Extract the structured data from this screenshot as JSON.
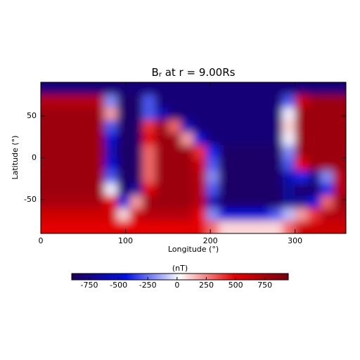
{
  "chart_data": {
    "type": "heatmap",
    "title": {
      "main": "B",
      "sub": "r",
      "rest": " at r = 9.00Rs"
    },
    "x_label": "Longitude (°)",
    "y_label": "Latitude (°)",
    "x": [
      7.5,
      22.5,
      37.5,
      52.5,
      67.5,
      82.5,
      97.5,
      112.5,
      127.5,
      142.5,
      157.5,
      172.5,
      187.5,
      202.5,
      217.5,
      232.5,
      247.5,
      262.5,
      277.5,
      292.5,
      307.5,
      322.5,
      337.5,
      352.5
    ],
    "y": [
      82.5,
      67.5,
      52.5,
      37.5,
      22.5,
      7.5,
      -7.5,
      -22.5,
      -37.5,
      -52.5,
      -67.5,
      -82.5
    ],
    "z": [
      [
        -800,
        -800,
        -800,
        -800,
        -800,
        -800,
        -800,
        -800,
        -800,
        -800,
        -800,
        -800,
        -800,
        -800,
        -800,
        -800,
        -800,
        -800,
        -800,
        -800,
        -800,
        -800,
        -800,
        -800
      ],
      [
        700,
        700,
        700,
        700,
        700,
        -200,
        -850,
        -850,
        -300,
        -800,
        -800,
        -800,
        -800,
        -800,
        -800,
        -800,
        -800,
        -800,
        -800,
        -300,
        600,
        800,
        800,
        800
      ],
      [
        800,
        800,
        800,
        800,
        800,
        200,
        -850,
        -850,
        -300,
        -600,
        -800,
        -800,
        -800,
        -800,
        -800,
        -800,
        -800,
        -800,
        -800,
        0,
        800,
        800,
        800,
        800
      ],
      [
        800,
        800,
        800,
        800,
        800,
        -300,
        -850,
        -850,
        400,
        800,
        300,
        -600,
        -800,
        -800,
        -800,
        -800,
        -800,
        -800,
        -800,
        100,
        800,
        800,
        800,
        800
      ],
      [
        800,
        800,
        800,
        800,
        800,
        -500,
        -850,
        -850,
        500,
        800,
        800,
        200,
        -500,
        -800,
        -800,
        -800,
        -800,
        -800,
        -800,
        0,
        800,
        800,
        800,
        800
      ],
      [
        800,
        800,
        800,
        800,
        800,
        -600,
        -850,
        -850,
        300,
        800,
        800,
        800,
        400,
        -400,
        -850,
        -850,
        -850,
        -850,
        -850,
        -200,
        800,
        800,
        800,
        800
      ],
      [
        800,
        800,
        800,
        800,
        800,
        -500,
        -850,
        -850,
        300,
        800,
        800,
        800,
        600,
        -300,
        -850,
        -850,
        -850,
        -850,
        -850,
        -300,
        500,
        800,
        800,
        800
      ],
      [
        800,
        800,
        800,
        800,
        800,
        -300,
        -850,
        -850,
        300,
        800,
        800,
        800,
        700,
        -200,
        -850,
        -850,
        -850,
        -850,
        -850,
        -600,
        -400,
        -700,
        -200,
        700
      ],
      [
        800,
        800,
        800,
        800,
        800,
        0,
        -800,
        -700,
        500,
        800,
        800,
        800,
        700,
        -300,
        -850,
        -850,
        -850,
        -850,
        -850,
        -700,
        -850,
        -850,
        -400,
        700
      ],
      [
        750,
        750,
        750,
        750,
        750,
        500,
        -500,
        200,
        800,
        800,
        800,
        800,
        700,
        -600,
        -850,
        -850,
        -850,
        -850,
        -850,
        -700,
        -700,
        -500,
        300,
        800
      ],
      [
        600,
        600,
        600,
        600,
        600,
        600,
        100,
        600,
        700,
        700,
        700,
        700,
        500,
        -200,
        -500,
        -500,
        -500,
        -500,
        -300,
        -100,
        200,
        400,
        700,
        700
      ],
      [
        500,
        500,
        500,
        500,
        500,
        500,
        500,
        500,
        500,
        500,
        500,
        500,
        500,
        300,
        100,
        100,
        100,
        100,
        100,
        300,
        600,
        600,
        600,
        600
      ]
    ],
    "xlim": [
      0,
      360
    ],
    "ylim": [
      -90,
      90
    ],
    "xticks": [
      0,
      100,
      200,
      300
    ],
    "yticks": [
      -50,
      0,
      50
    ],
    "colorbar": {
      "label": "(nT)",
      "clim": [
        -900,
        950
      ],
      "ticks": [
        -750,
        -500,
        -250,
        0,
        250,
        500,
        750
      ]
    },
    "colormap": [
      "#1e0058",
      "#0010e8",
      "#ffffff",
      "#e80000",
      "#780010"
    ]
  }
}
